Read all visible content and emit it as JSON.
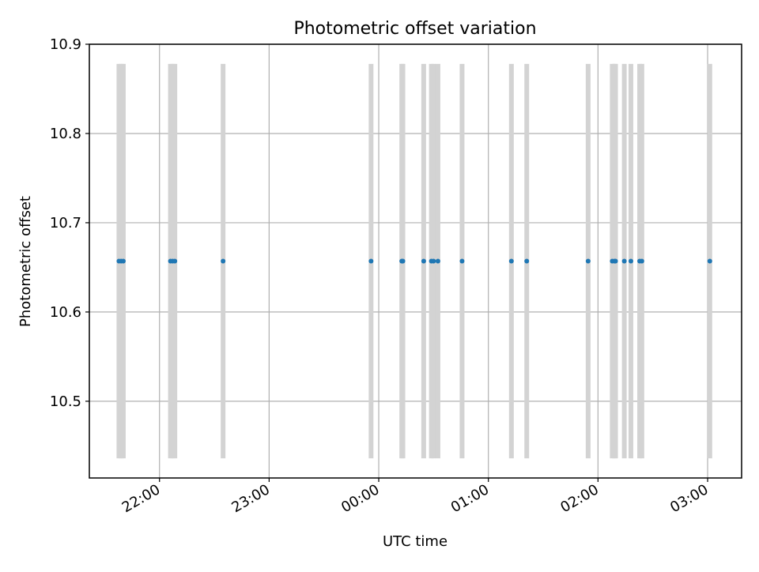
{
  "chart_data": {
    "type": "scatter",
    "title": "Photometric offset variation",
    "xlabel": "UTC time",
    "ylabel": "Photometric offset",
    "grid": true,
    "xlim_hours": [
      21.36,
      27.31
    ],
    "ylim": [
      10.414,
      10.9
    ],
    "y_ticks": [
      10.5,
      10.6,
      10.7,
      10.8,
      10.9
    ],
    "y_tick_labels": [
      "10.5",
      "10.6",
      "10.7",
      "10.8",
      "10.9"
    ],
    "x_ticks_hours": [
      22,
      23,
      24,
      25,
      26,
      27
    ],
    "x_tick_labels": [
      "22:00",
      "23:00",
      "00:00",
      "01:00",
      "02:00",
      "03:00"
    ],
    "band_range": [
      10.436,
      10.878
    ],
    "series": [
      {
        "name": "photometric offset",
        "color": "#1f77b4",
        "x_hours": [
          21.63,
          21.65,
          21.67,
          22.1,
          22.12,
          22.14,
          22.58,
          23.93,
          24.21,
          24.22,
          24.41,
          24.48,
          24.5,
          24.54,
          24.76,
          25.21,
          25.35,
          25.91,
          26.13,
          26.15,
          26.16,
          26.24,
          26.3,
          26.38,
          26.4,
          27.02
        ],
        "y": [
          10.657,
          10.657,
          10.657,
          10.657,
          10.657,
          10.657,
          10.657,
          10.657,
          10.657,
          10.657,
          10.657,
          10.657,
          10.657,
          10.657,
          10.657,
          10.657,
          10.657,
          10.657,
          10.657,
          10.657,
          10.657,
          10.657,
          10.657,
          10.657,
          10.657,
          10.657
        ]
      }
    ],
    "bands_color": "#d3d3d3"
  }
}
